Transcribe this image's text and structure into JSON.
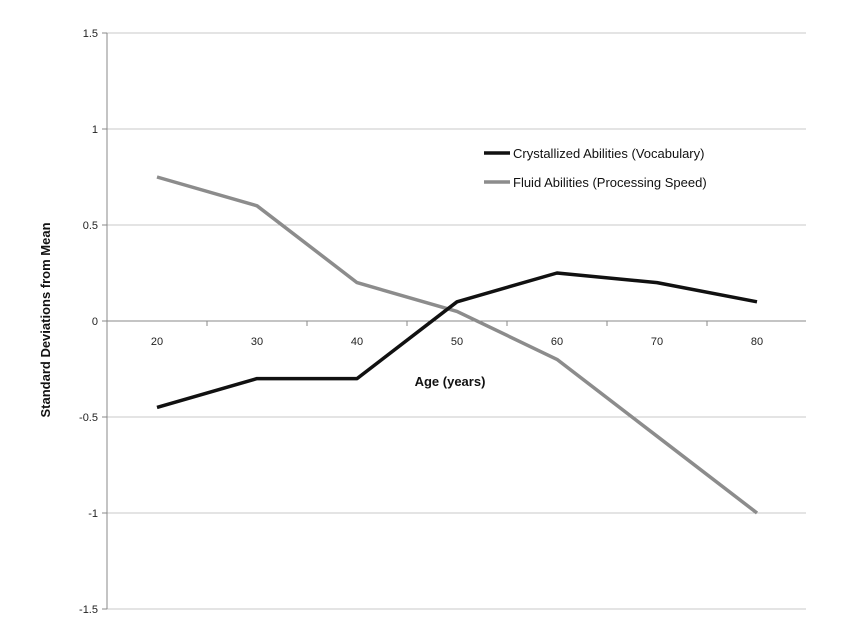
{
  "chart_data": {
    "type": "line",
    "xlabel": "Age (years)",
    "ylabel": "Standard Deviations from Mean",
    "x": [
      20,
      30,
      40,
      50,
      60,
      70,
      80
    ],
    "x_tick_labels": [
      "20",
      "30",
      "40",
      "50",
      "60",
      "70",
      "80"
    ],
    "ylim": [
      -1.5,
      1.5
    ],
    "y_ticks": [
      1.5,
      1,
      0.5,
      0,
      -0.5,
      -1,
      -1.5
    ],
    "y_tick_labels": [
      "1.5",
      "1",
      "0.5",
      "0",
      "-0.5",
      "-1",
      "-1.5"
    ],
    "grid": true,
    "legend_position": "top-right",
    "series": [
      {
        "name": "Crystallized Abilities (Vocabulary)",
        "color": "#111111",
        "values": [
          -0.45,
          -0.3,
          -0.3,
          0.1,
          0.25,
          0.2,
          0.1
        ]
      },
      {
        "name": "Fluid Abilities (Processing Speed)",
        "color": "#8c8c8c",
        "values": [
          0.75,
          0.6,
          0.2,
          0.05,
          -0.2,
          -0.6,
          -1.0
        ]
      }
    ]
  }
}
